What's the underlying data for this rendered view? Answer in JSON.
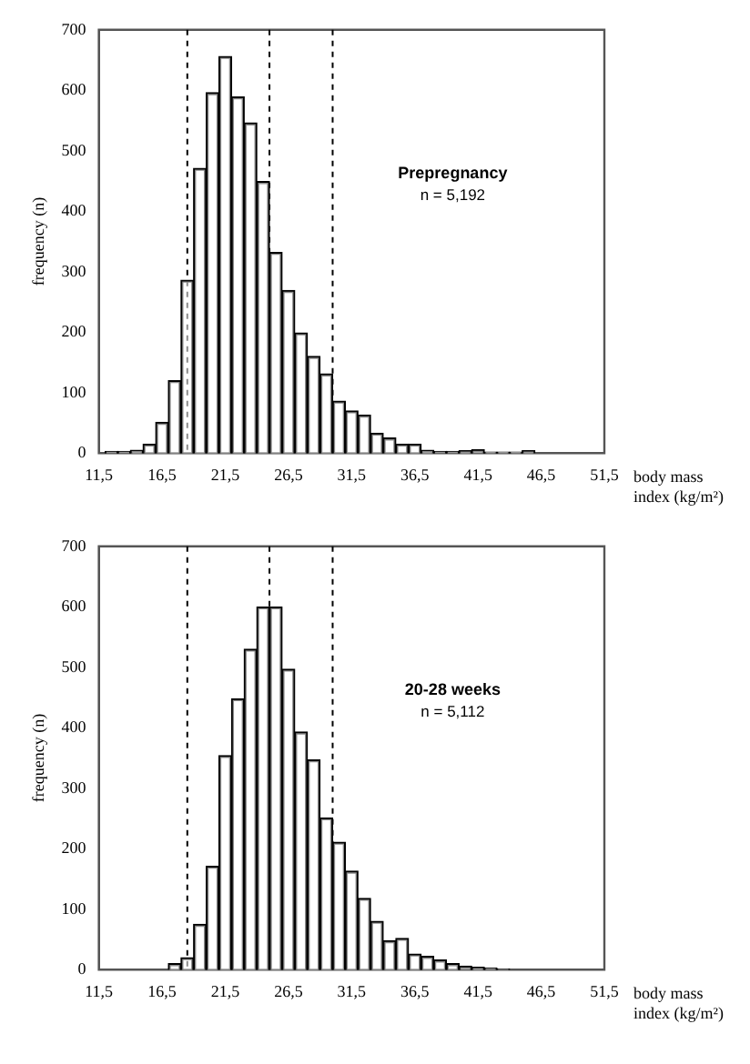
{
  "chart_data": [
    {
      "type": "histogram",
      "color": "#000000",
      "xlabel": "body mass index (kg/m²)",
      "ylabel": "frequency (n)",
      "annotations": [
        "Prepregnancy",
        "n = 5,192"
      ],
      "bins": [
        12,
        13,
        14,
        15,
        16,
        17,
        18,
        19,
        20,
        21,
        22,
        23,
        24,
        25,
        26,
        27,
        28,
        29,
        30,
        31,
        32,
        33,
        34,
        35,
        36,
        37,
        38,
        39,
        40,
        41,
        42,
        43,
        44,
        45,
        46
      ],
      "values": [
        3,
        3,
        5,
        15,
        51,
        120,
        286,
        471,
        596,
        656,
        589,
        546,
        449,
        332,
        269,
        199,
        160,
        131,
        86,
        70,
        63,
        33,
        25,
        15,
        15,
        5,
        3,
        3,
        4,
        6,
        2,
        2,
        2,
        4
      ],
      "xlim": [
        11.5,
        51.5
      ],
      "xticks": [
        {
          "value": 11.5,
          "label": "11,5"
        },
        {
          "value": 16.5,
          "label": "16,5"
        },
        {
          "value": 21.5,
          "label": "21,5"
        },
        {
          "value": 26.5,
          "label": "26,5"
        },
        {
          "value": 31.5,
          "label": "31,5"
        },
        {
          "value": 36.5,
          "label": "36,5"
        },
        {
          "value": 41.5,
          "label": "41,5"
        },
        {
          "value": 46.5,
          "label": "46,5"
        },
        {
          "value": 51.5,
          "label": "51,5"
        }
      ],
      "ylim": [
        0,
        700
      ],
      "yticks": [
        0,
        100,
        200,
        300,
        400,
        500,
        600,
        700
      ],
      "ref_lines": [
        {
          "axis": "x",
          "value": 18.5,
          "line_style": "dashed"
        },
        {
          "axis": "x",
          "value": 25,
          "line_style": "dashed"
        },
        {
          "axis": "x",
          "value": 30,
          "line_style": "dashed"
        }
      ]
    },
    {
      "type": "histogram",
      "color": "#000000",
      "xlabel": "body mass index (kg/m²)",
      "ylabel": "frequency (n)",
      "annotations": [
        "20-28 weeks",
        "n = 5,112"
      ],
      "bins": [
        17,
        18,
        19,
        20,
        21,
        22,
        23,
        24,
        25,
        26,
        27,
        28,
        29,
        30,
        31,
        32,
        33,
        34,
        35,
        36,
        37,
        38,
        39,
        40,
        41,
        42,
        43,
        44
      ],
      "values": [
        10,
        20,
        75,
        171,
        354,
        448,
        530,
        600,
        600,
        497,
        393,
        347,
        251,
        211,
        163,
        118,
        80,
        48,
        52,
        26,
        22,
        16,
        10,
        6,
        4,
        3,
        1
      ],
      "xlim": [
        11.5,
        51.5
      ],
      "xticks": [
        {
          "value": 11.5,
          "label": "11,5"
        },
        {
          "value": 16.5,
          "label": "16,5"
        },
        {
          "value": 21.5,
          "label": "21,5"
        },
        {
          "value": 26.5,
          "label": "26,5"
        },
        {
          "value": 31.5,
          "label": "31,5"
        },
        {
          "value": 36.5,
          "label": "36,5"
        },
        {
          "value": 41.5,
          "label": "41,5"
        },
        {
          "value": 46.5,
          "label": "46,5"
        },
        {
          "value": 51.5,
          "label": "51,5"
        }
      ],
      "ylim": [
        0,
        700
      ],
      "yticks": [
        0,
        100,
        200,
        300,
        400,
        500,
        600,
        700
      ],
      "ref_lines": [
        {
          "axis": "x",
          "value": 18.5,
          "line_style": "dashed"
        },
        {
          "axis": "x",
          "value": 25,
          "line_style": "dashed"
        },
        {
          "axis": "x",
          "value": 30,
          "line_style": "dashed"
        }
      ]
    }
  ]
}
